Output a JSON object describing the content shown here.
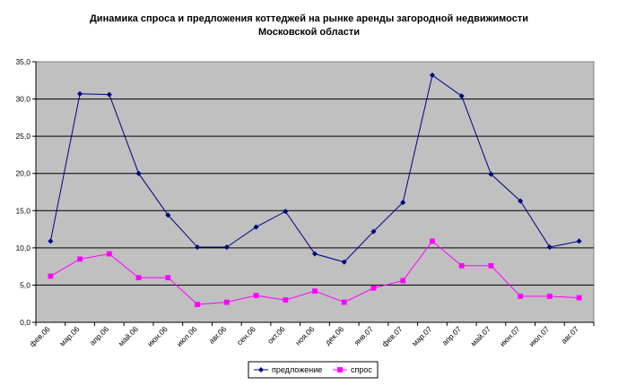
{
  "chart_data": {
    "type": "line",
    "title_line1": "Динамика спроса и предложения коттеджей на рынке аренды загородной недвижимости",
    "title_line2": "Московской области",
    "categories": [
      "фев.06",
      "мар.06",
      "апр.06",
      "май.06",
      "июн.06",
      "июл.06",
      "авг.06",
      "сен.06",
      "окт.06",
      "ноя.06",
      "дек.06",
      "янв.07",
      "фев.07",
      "мар.07",
      "апр.07",
      "май.07",
      "июн.07",
      "июл.07",
      "авг.07"
    ],
    "yticks": [
      "0,0",
      "5,0",
      "10,0",
      "15,0",
      "20,0",
      "25,0",
      "30,0",
      "35,0"
    ],
    "ylim": [
      0,
      35
    ],
    "grid": true,
    "legend_position": "bottom",
    "series": [
      {
        "name": "предложение",
        "color": "#000080",
        "marker": "diamond",
        "values": [
          10.9,
          30.7,
          30.6,
          20.0,
          14.4,
          10.1,
          10.1,
          12.8,
          14.9,
          9.2,
          8.1,
          12.2,
          16.1,
          33.2,
          30.4,
          19.9,
          16.3,
          10.1,
          10.9
        ]
      },
      {
        "name": "спрос",
        "color": "#ff00ff",
        "marker": "square",
        "values": [
          6.2,
          8.5,
          9.2,
          6.0,
          6.0,
          2.4,
          2.7,
          3.6,
          3.0,
          4.2,
          2.7,
          4.6,
          5.6,
          10.9,
          7.6,
          7.6,
          3.5,
          3.5,
          3.3
        ]
      }
    ],
    "plot_bg": "#c0c0c0"
  }
}
